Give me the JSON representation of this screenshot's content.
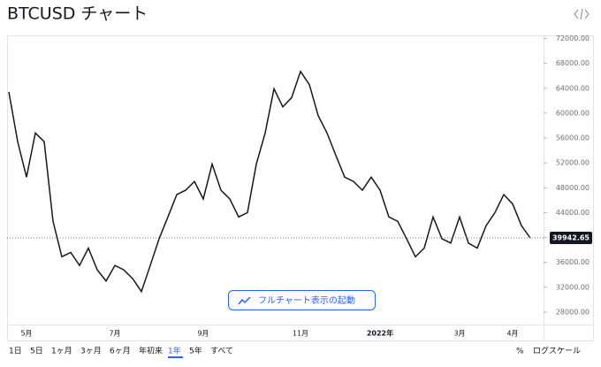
{
  "chart_data": {
    "type": "line",
    "title": "BTCUSD チャート",
    "categories": [
      null,
      null,
      "5月",
      null,
      null,
      null,
      null,
      null,
      null,
      null,
      null,
      null,
      "7月",
      null,
      null,
      null,
      null,
      null,
      null,
      null,
      null,
      null,
      "9月",
      null,
      null,
      null,
      null,
      null,
      null,
      null,
      null,
      null,
      null,
      "11月",
      null,
      null,
      null,
      null,
      null,
      null,
      null,
      null,
      "2022年",
      null,
      null,
      null,
      null,
      null,
      null,
      null,
      null,
      "3月",
      null,
      null,
      null,
      null,
      null,
      "4月",
      null,
      null
    ],
    "series": [
      {
        "name": "BTCUSD",
        "color": "#131722",
        "values": [
          63400,
          55400,
          49700,
          56800,
          55400,
          42600,
          36900,
          37600,
          35500,
          38300,
          34800,
          33000,
          35500,
          34800,
          33400,
          31300,
          35500,
          39800,
          43300,
          46900,
          47600,
          49000,
          46200,
          51800,
          47600,
          46200,
          43300,
          44000,
          51800,
          56800,
          63900,
          61000,
          62500,
          66700,
          64600,
          59600,
          56800,
          53200,
          49700,
          49000,
          47600,
          49700,
          47600,
          43300,
          42600,
          39800,
          36900,
          38300,
          43300,
          39800,
          39100,
          43300,
          39100,
          38300,
          41900,
          44000,
          46900,
          45400,
          41900,
          39900
        ]
      }
    ],
    "ylim": [
      26000,
      72500
    ],
    "yticks": [
      {
        "value": 28000,
        "label": "28000.00"
      },
      {
        "value": 32000,
        "label": "32000.00"
      },
      {
        "value": 36000,
        "label": "36000.00"
      },
      {
        "value": 40000,
        "label": "40000.00"
      },
      {
        "value": 44000,
        "label": "44000.00"
      },
      {
        "value": 48000,
        "label": "48000.00"
      },
      {
        "value": 52000,
        "label": "52000.00"
      },
      {
        "value": 56000,
        "label": "56000.00"
      },
      {
        "value": 60000,
        "label": "60000.00"
      },
      {
        "value": 64000,
        "label": "64000.00"
      },
      {
        "value": 68000,
        "label": "68000.00"
      },
      {
        "value": 72000,
        "label": "72000.00"
      }
    ],
    "last_value": 39942.65,
    "grid": false
  },
  "button": "フルチャート表示の起動",
  "toolbar": {
    "ranges": [
      "1日",
      "5日",
      "1ヶ月",
      "3ヶ月",
      "6ヶ月",
      "年初来",
      "1年",
      "5年",
      "すべて"
    ],
    "selected": 6,
    "percent": "%",
    "log": "ログスケール"
  }
}
